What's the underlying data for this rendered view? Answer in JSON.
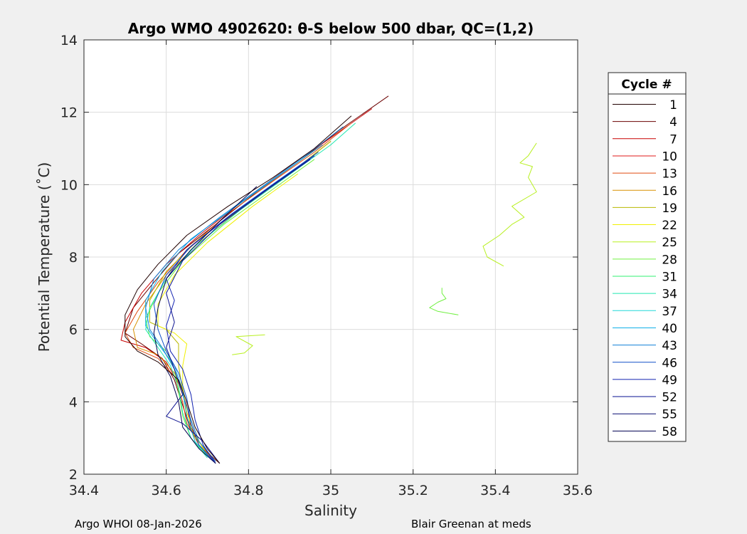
{
  "chart_data": {
    "type": "line",
    "title": "Argo WMO 4902620: θ-S below 500 dbar,  QC=(1,2)",
    "xlabel": "Salinity",
    "ylabel": "Potential Temperature (˚C)",
    "xlim": [
      34.4,
      35.6
    ],
    "ylim": [
      2,
      14
    ],
    "xticks": [
      "34.4",
      "34.6",
      "34.8",
      "35",
      "35.2",
      "35.4",
      "35.6"
    ],
    "yticks": [
      "2",
      "4",
      "6",
      "8",
      "10",
      "12",
      "14"
    ],
    "grid": true,
    "legend": {
      "title": "Cycle #",
      "placement": "right-outside",
      "entries": [
        {
          "label": "1",
          "color": "#200000"
        },
        {
          "label": "4",
          "color": "#6a0000"
        },
        {
          "label": "7",
          "color": "#c80000"
        },
        {
          "label": "10",
          "color": "#e01818"
        },
        {
          "label": "13",
          "color": "#e04a10"
        },
        {
          "label": "16",
          "color": "#d89000"
        },
        {
          "label": "19",
          "color": "#b8b800"
        },
        {
          "label": "22",
          "color": "#f0f000"
        },
        {
          "label": "25",
          "color": "#b8f020"
        },
        {
          "label": "28",
          "color": "#70f040"
        },
        {
          "label": "31",
          "color": "#30f070"
        },
        {
          "label": "34",
          "color": "#20e8b0"
        },
        {
          "label": "37",
          "color": "#20d8d8"
        },
        {
          "label": "40",
          "color": "#10b0e8"
        },
        {
          "label": "43",
          "color": "#1080d8"
        },
        {
          "label": "46",
          "color": "#1050c8"
        },
        {
          "label": "49",
          "color": "#1020b0"
        },
        {
          "label": "52",
          "color": "#0a1090"
        },
        {
          "label": "55",
          "color": "#060a70"
        },
        {
          "label": "58",
          "color": "#000050"
        }
      ]
    },
    "series": [
      {
        "color": "#6a0000",
        "points": [
          [
            34.73,
            2.3
          ],
          [
            34.7,
            2.6
          ],
          [
            34.66,
            3.2
          ],
          [
            34.64,
            3.9
          ],
          [
            34.62,
            4.6
          ],
          [
            34.59,
            5.2
          ],
          [
            34.54,
            5.6
          ],
          [
            34.5,
            5.9
          ],
          [
            34.52,
            6.6
          ],
          [
            34.57,
            7.3
          ],
          [
            34.63,
            8.1
          ],
          [
            34.72,
            8.9
          ],
          [
            34.82,
            9.8
          ],
          [
            34.93,
            10.7
          ],
          [
            35.02,
            11.5
          ],
          [
            35.14,
            12.45
          ]
        ]
      },
      {
        "color": "#c80000",
        "points": [
          [
            34.72,
            2.3
          ],
          [
            34.69,
            2.7
          ],
          [
            34.66,
            3.3
          ],
          [
            34.65,
            3.9
          ],
          [
            34.63,
            4.5
          ],
          [
            34.6,
            5.1
          ],
          [
            34.55,
            5.5
          ],
          [
            34.49,
            5.7
          ],
          [
            34.5,
            6.2
          ],
          [
            34.54,
            7.0
          ],
          [
            34.6,
            7.8
          ],
          [
            34.68,
            8.6
          ],
          [
            34.78,
            9.5
          ],
          [
            34.9,
            10.5
          ],
          [
            35.0,
            11.3
          ],
          [
            35.1,
            12.1
          ]
        ]
      },
      {
        "color": "#e04a10",
        "points": [
          [
            34.72,
            2.35
          ],
          [
            34.68,
            2.8
          ],
          [
            34.65,
            3.4
          ],
          [
            34.64,
            4.0
          ],
          [
            34.62,
            4.7
          ],
          [
            34.58,
            5.2
          ],
          [
            34.52,
            5.5
          ],
          [
            34.5,
            5.9
          ],
          [
            34.53,
            6.5
          ],
          [
            34.58,
            7.3
          ],
          [
            34.65,
            8.2
          ],
          [
            34.75,
            9.2
          ],
          [
            34.86,
            10.1
          ],
          [
            34.96,
            10.9
          ],
          [
            35.05,
            11.7
          ]
        ]
      },
      {
        "color": "#d89000",
        "points": [
          [
            34.71,
            2.4
          ],
          [
            34.68,
            2.9
          ],
          [
            34.66,
            3.5
          ],
          [
            34.64,
            4.2
          ],
          [
            34.62,
            4.8
          ],
          [
            34.58,
            5.3
          ],
          [
            34.53,
            5.5
          ],
          [
            34.52,
            6.0
          ],
          [
            34.55,
            6.7
          ],
          [
            34.6,
            7.5
          ],
          [
            34.68,
            8.4
          ],
          [
            34.79,
            9.4
          ],
          [
            34.9,
            10.3
          ],
          [
            35.0,
            11.2
          ]
        ]
      },
      {
        "color": "#b8b800",
        "points": [
          [
            34.71,
            2.5
          ],
          [
            34.67,
            3.0
          ],
          [
            34.65,
            3.6
          ],
          [
            34.64,
            4.3
          ],
          [
            34.63,
            5.0
          ],
          [
            34.63,
            5.6
          ],
          [
            34.6,
            6.0
          ],
          [
            34.56,
            6.2
          ],
          [
            34.56,
            6.8
          ],
          [
            34.6,
            7.6
          ],
          [
            34.68,
            8.5
          ],
          [
            34.8,
            9.5
          ],
          [
            34.91,
            10.4
          ],
          [
            35.0,
            11.2
          ]
        ]
      },
      {
        "color": "#f0f000",
        "points": [
          [
            34.7,
            2.5
          ],
          [
            34.67,
            3.1
          ],
          [
            34.65,
            3.7
          ],
          [
            34.64,
            4.4
          ],
          [
            34.64,
            5.0
          ],
          [
            34.65,
            5.6
          ],
          [
            34.62,
            5.9
          ],
          [
            34.58,
            6.1
          ],
          [
            34.58,
            6.7
          ],
          [
            34.62,
            7.5
          ],
          [
            34.7,
            8.4
          ],
          [
            34.81,
            9.4
          ],
          [
            34.92,
            10.3
          ]
        ]
      },
      {
        "color": "#b8f020",
        "points": [
          [
            35.42,
            7.75
          ],
          [
            35.38,
            8.0
          ],
          [
            35.37,
            8.3
          ],
          [
            35.41,
            8.6
          ],
          [
            35.44,
            8.9
          ],
          [
            35.47,
            9.1
          ],
          [
            35.44,
            9.4
          ],
          [
            35.5,
            9.8
          ],
          [
            35.48,
            10.2
          ],
          [
            35.49,
            10.5
          ],
          [
            35.46,
            10.6
          ],
          [
            35.48,
            10.8
          ],
          [
            35.5,
            11.15
          ]
        ]
      },
      {
        "color": "#b8f020",
        "points": [
          [
            34.76,
            5.3
          ],
          [
            34.79,
            5.35
          ],
          [
            34.81,
            5.55
          ],
          [
            34.77,
            5.8
          ],
          [
            34.84,
            5.85
          ]
        ]
      },
      {
        "color": "#70f040",
        "points": [
          [
            35.31,
            6.4
          ],
          [
            35.26,
            6.5
          ],
          [
            35.24,
            6.6
          ],
          [
            35.26,
            6.75
          ],
          [
            35.28,
            6.85
          ],
          [
            35.27,
            7.0
          ],
          [
            35.27,
            7.15
          ]
        ]
      },
      {
        "color": "#70f040",
        "points": [
          [
            34.7,
            2.5
          ],
          [
            34.66,
            3.0
          ],
          [
            34.64,
            3.6
          ],
          [
            34.63,
            4.3
          ],
          [
            34.62,
            4.9
          ],
          [
            34.6,
            5.4
          ],
          [
            34.56,
            5.8
          ],
          [
            34.55,
            6.3
          ],
          [
            34.58,
            7.0
          ],
          [
            34.64,
            7.9
          ],
          [
            34.74,
            8.9
          ],
          [
            34.85,
            9.8
          ],
          [
            34.96,
            10.7
          ]
        ]
      },
      {
        "color": "#20e8b0",
        "points": [
          [
            34.7,
            2.45
          ],
          [
            34.66,
            3.0
          ],
          [
            34.64,
            3.7
          ],
          [
            34.63,
            4.4
          ],
          [
            34.61,
            5.0
          ],
          [
            34.58,
            5.5
          ],
          [
            34.55,
            6.0
          ],
          [
            34.56,
            6.6
          ],
          [
            34.6,
            7.4
          ],
          [
            34.67,
            8.3
          ],
          [
            34.78,
            9.3
          ],
          [
            34.89,
            10.2
          ],
          [
            35.0,
            11.1
          ],
          [
            35.06,
            11.7
          ]
        ]
      },
      {
        "color": "#10b0e8",
        "points": [
          [
            34.71,
            2.4
          ],
          [
            34.67,
            2.9
          ],
          [
            34.65,
            3.6
          ],
          [
            34.64,
            4.3
          ],
          [
            34.62,
            5.0
          ],
          [
            34.58,
            5.6
          ],
          [
            34.55,
            6.1
          ],
          [
            34.55,
            6.8
          ],
          [
            34.59,
            7.6
          ],
          [
            34.66,
            8.5
          ],
          [
            34.77,
            9.4
          ],
          [
            34.88,
            10.3
          ],
          [
            34.98,
            11.1
          ]
        ]
      },
      {
        "color": "#1080d8",
        "points": [
          [
            34.72,
            2.35
          ],
          [
            34.68,
            2.9
          ],
          [
            34.66,
            3.5
          ],
          [
            34.64,
            4.2
          ],
          [
            34.62,
            4.9
          ],
          [
            34.59,
            5.5
          ],
          [
            34.56,
            6.0
          ],
          [
            34.55,
            6.6
          ],
          [
            34.57,
            7.4
          ],
          [
            34.63,
            8.2
          ],
          [
            34.73,
            9.1
          ],
          [
            34.84,
            10.0
          ],
          [
            34.95,
            10.9
          ],
          [
            35.03,
            11.6
          ]
        ]
      },
      {
        "color": "#1050c8",
        "points": [
          [
            34.72,
            2.3
          ],
          [
            34.68,
            2.8
          ],
          [
            34.66,
            3.4
          ],
          [
            34.65,
            4.1
          ],
          [
            34.63,
            4.8
          ],
          [
            34.6,
            5.4
          ],
          [
            34.58,
            6.0
          ],
          [
            34.57,
            6.7
          ],
          [
            34.6,
            7.5
          ],
          [
            34.66,
            8.3
          ],
          [
            34.76,
            9.2
          ],
          [
            34.87,
            10.1
          ],
          [
            34.97,
            10.9
          ]
        ]
      },
      {
        "color": "#1020b0",
        "points": [
          [
            34.72,
            2.3
          ],
          [
            34.69,
            2.8
          ],
          [
            34.67,
            3.5
          ],
          [
            34.66,
            4.2
          ],
          [
            34.64,
            4.9
          ],
          [
            34.61,
            5.4
          ],
          [
            34.6,
            6.1
          ],
          [
            34.62,
            6.8
          ],
          [
            34.6,
            7.4
          ],
          [
            34.65,
            8.2
          ],
          [
            34.75,
            9.1
          ],
          [
            34.86,
            10.0
          ],
          [
            34.96,
            10.8
          ]
        ]
      },
      {
        "color": "#0a1090",
        "points": [
          [
            34.73,
            2.3
          ],
          [
            34.69,
            2.9
          ],
          [
            34.64,
            3.4
          ],
          [
            34.6,
            3.6
          ],
          [
            34.64,
            4.2
          ],
          [
            34.62,
            4.9
          ],
          [
            34.6,
            5.5
          ],
          [
            34.62,
            6.2
          ],
          [
            34.6,
            7.0
          ],
          [
            34.64,
            7.9
          ],
          [
            34.73,
            8.9
          ],
          [
            34.85,
            9.9
          ],
          [
            34.95,
            10.7
          ]
        ]
      },
      {
        "color": "#000050",
        "points": [
          [
            34.72,
            2.3
          ],
          [
            34.68,
            2.7
          ],
          [
            34.64,
            3.3
          ],
          [
            34.63,
            4.0
          ],
          [
            34.61,
            4.7
          ],
          [
            34.58,
            5.3
          ],
          [
            34.57,
            5.9
          ],
          [
            34.58,
            6.6
          ],
          [
            34.6,
            7.4
          ],
          [
            34.66,
            8.2
          ],
          [
            34.74,
            9.1
          ],
          [
            34.82,
            9.95
          ]
        ]
      },
      {
        "color": "#200000",
        "points": [
          [
            34.73,
            2.3
          ],
          [
            34.7,
            2.7
          ],
          [
            34.67,
            3.3
          ],
          [
            34.65,
            4.0
          ],
          [
            34.63,
            4.6
          ],
          [
            34.58,
            5.1
          ],
          [
            34.53,
            5.4
          ],
          [
            34.5,
            5.8
          ],
          [
            34.5,
            6.4
          ],
          [
            34.53,
            7.1
          ],
          [
            34.58,
            7.8
          ],
          [
            34.65,
            8.6
          ],
          [
            34.75,
            9.4
          ],
          [
            34.86,
            10.2
          ],
          [
            34.96,
            11.0
          ],
          [
            35.05,
            11.9
          ]
        ]
      }
    ]
  },
  "footer": {
    "left": "Argo WHOI 08-Jan-2026",
    "right": "Blair Greenan at meds"
  }
}
